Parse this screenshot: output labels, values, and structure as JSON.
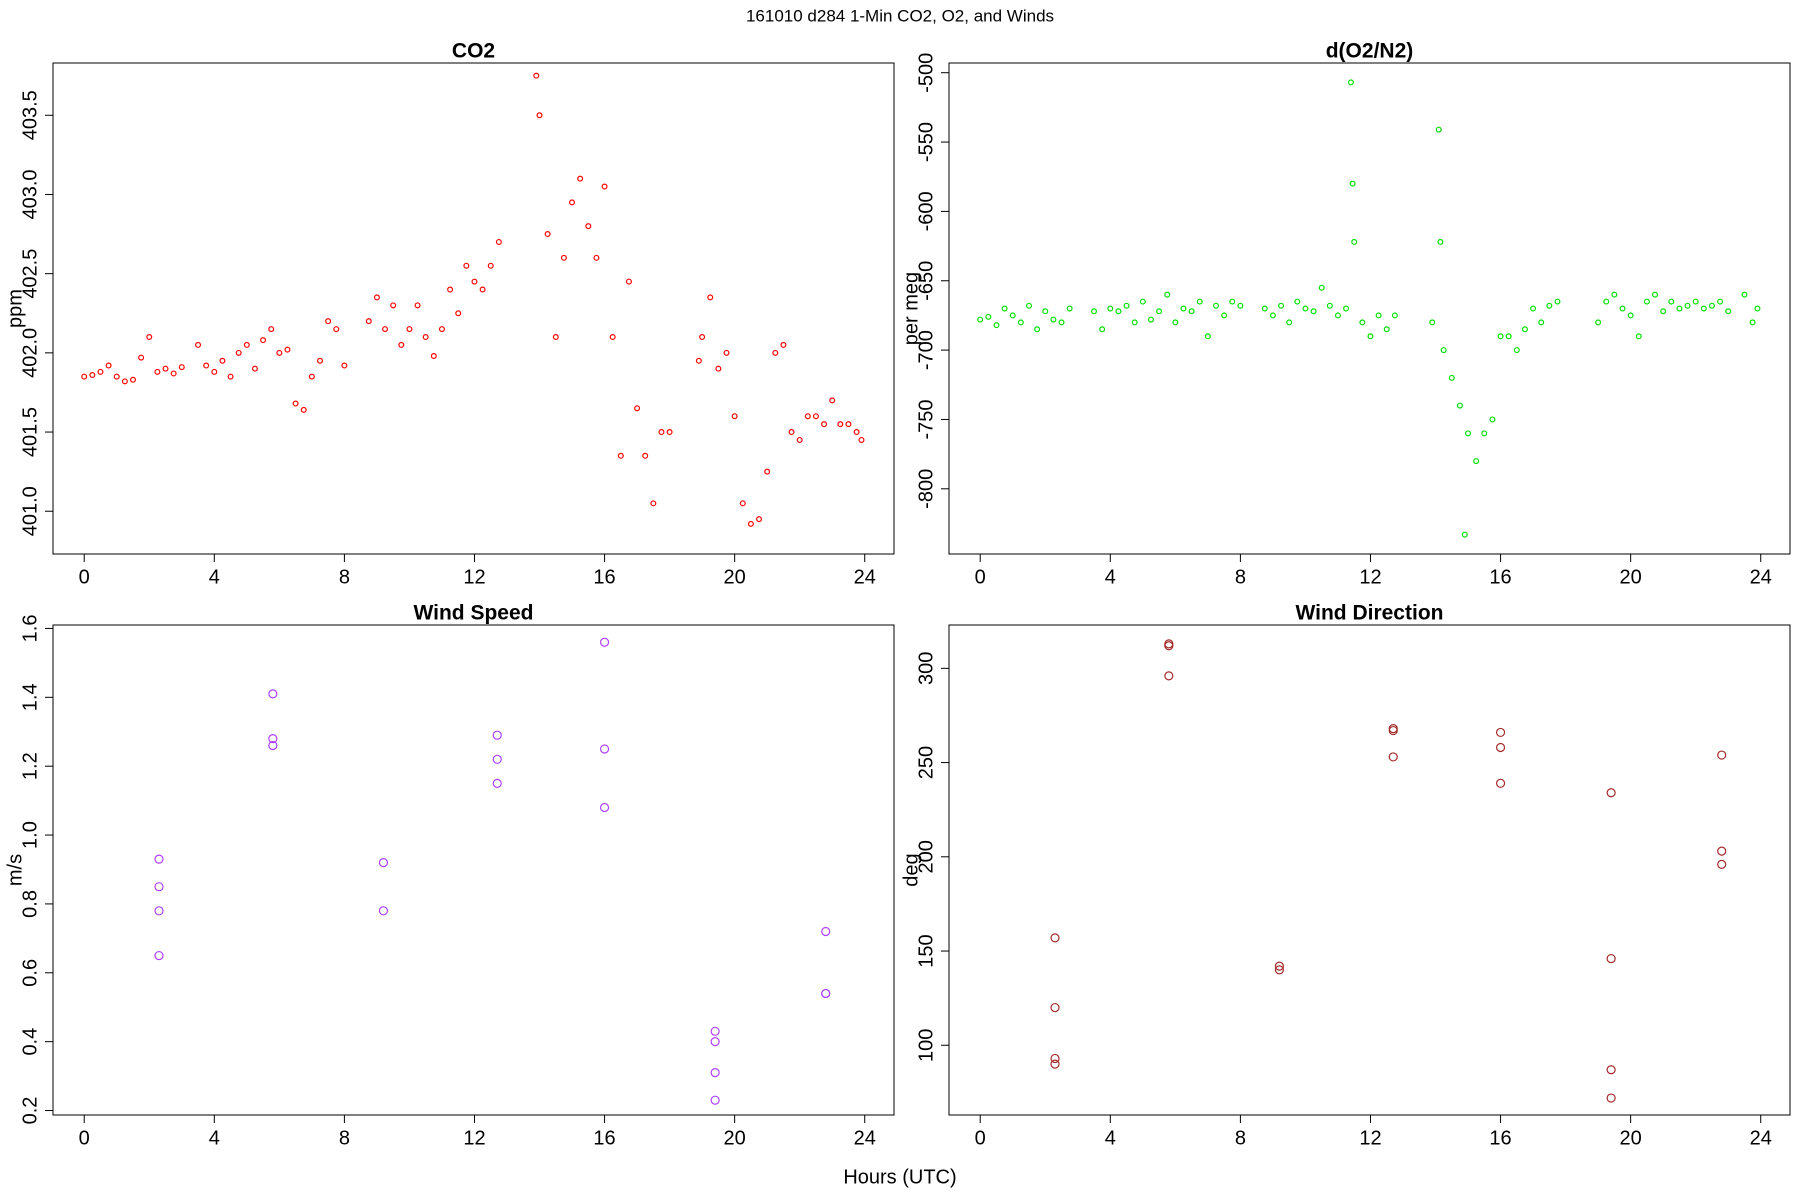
{
  "title": "161010   d284   1-Min CO2, O2, and Winds",
  "xlabel": "Hours (UTC)",
  "chart_data": [
    {
      "type": "scatter",
      "title": "CO2",
      "ylabel": "ppm",
      "color": "#ff0000",
      "xlim": [
        -0.96,
        24.9
      ],
      "ylim": [
        400.73,
        403.83
      ],
      "xticks": [
        0,
        4,
        8,
        12,
        16,
        20,
        24
      ],
      "yticks": [
        {
          "value": 401,
          "label": "401.0"
        },
        401.5,
        {
          "value": 402,
          "label": "402.0"
        },
        402.5,
        {
          "value": 403,
          "label": "403.0"
        },
        403.5
      ],
      "x": [
        0,
        0.25,
        0.5,
        0.75,
        1,
        1.25,
        1.5,
        1.75,
        2,
        2.25,
        2.5,
        2.75,
        3,
        3.5,
        3.75,
        4,
        4.25,
        4.5,
        4.75,
        5,
        5.25,
        5.5,
        5.75,
        6,
        6.25,
        6.5,
        6.75,
        7,
        7.25,
        7.5,
        7.75,
        8,
        8.75,
        9,
        9.25,
        9.5,
        9.75,
        10,
        10.25,
        10.5,
        10.75,
        11,
        11.25,
        11.5,
        11.75,
        12,
        12.25,
        12.5,
        12.75,
        13.9,
        14,
        14.25,
        14.5,
        14.75,
        15,
        15.25,
        15.5,
        15.75,
        16,
        16.25,
        16.5,
        16.75,
        17,
        17.25,
        17.5,
        17.75,
        18,
        18.9,
        19,
        19.25,
        19.5,
        19.75,
        20,
        20.25,
        20.5,
        20.75,
        21,
        21.25,
        21.5,
        21.75,
        22,
        22.25,
        22.5,
        22.75,
        23,
        23.25,
        23.5,
        23.75,
        23.9
      ],
      "values": [
        401.85,
        401.86,
        401.88,
        401.92,
        401.85,
        401.82,
        401.83,
        401.97,
        402.1,
        401.88,
        401.9,
        401.87,
        401.91,
        402.05,
        401.92,
        401.88,
        401.95,
        401.85,
        402.0,
        402.05,
        401.9,
        402.08,
        402.15,
        402.0,
        402.02,
        401.68,
        401.64,
        401.85,
        401.95,
        402.2,
        402.15,
        401.92,
        402.2,
        402.35,
        402.15,
        402.3,
        402.05,
        402.15,
        402.3,
        402.1,
        401.98,
        402.15,
        402.4,
        402.25,
        402.55,
        402.45,
        402.4,
        402.55,
        402.7,
        403.75,
        403.5,
        402.75,
        402.1,
        402.6,
        402.95,
        403.1,
        402.8,
        402.6,
        403.05,
        402.1,
        401.35,
        402.45,
        401.65,
        401.35,
        401.05,
        401.5,
        401.5,
        401.95,
        402.1,
        402.35,
        401.9,
        402.0,
        401.6,
        401.05,
        400.92,
        400.95,
        401.25,
        402.0,
        402.05,
        401.5,
        401.45,
        401.6,
        401.6,
        401.55,
        401.7,
        401.55,
        401.55,
        401.5,
        401.45
      ]
    },
    {
      "type": "scatter",
      "title": "d(O2/N2)",
      "ylabel": "per meg",
      "color": "#00e000",
      "xlim": [
        -0.96,
        24.9
      ],
      "ylim": [
        -847,
        -493
      ],
      "xticks": [
        0,
        4,
        8,
        12,
        16,
        20,
        24
      ],
      "yticks": [
        -500,
        -550,
        -600,
        -650,
        -700,
        -750,
        -800
      ],
      "x": [
        0,
        0.25,
        0.5,
        0.75,
        1,
        1.25,
        1.5,
        1.75,
        2,
        2.25,
        2.5,
        2.75,
        3.5,
        3.75,
        4,
        4.25,
        4.5,
        4.75,
        5,
        5.25,
        5.5,
        5.75,
        6,
        6.25,
        6.5,
        6.75,
        7,
        7.25,
        7.5,
        7.75,
        8,
        8.75,
        9,
        9.25,
        9.5,
        9.75,
        10,
        10.25,
        10.5,
        10.75,
        11,
        11.25,
        11.4,
        11.45,
        11.5,
        11.75,
        12,
        12.25,
        12.5,
        12.75,
        13.9,
        14.1,
        14.15,
        14.25,
        14.5,
        14.75,
        14.9,
        15,
        15.25,
        15.5,
        15.75,
        16,
        16.25,
        16.5,
        16.75,
        17,
        17.25,
        17.5,
        17.75,
        19,
        19.25,
        19.5,
        19.75,
        20,
        20.25,
        20.5,
        20.75,
        21,
        21.25,
        21.5,
        21.75,
        22,
        22.25,
        22.5,
        22.75,
        23,
        23.5,
        23.75,
        23.9
      ],
      "values": [
        -678,
        -676,
        -682,
        -670,
        -675,
        -680,
        -668,
        -685,
        -672,
        -678,
        -680,
        -670,
        -672,
        -685,
        -670,
        -672,
        -668,
        -680,
        -665,
        -678,
        -672,
        -660,
        -680,
        -670,
        -672,
        -665,
        -690,
        -668,
        -675,
        -665,
        -668,
        -670,
        -675,
        -668,
        -680,
        -665,
        -670,
        -672,
        -655,
        -668,
        -675,
        -670,
        -507,
        -580,
        -622,
        -680,
        -690,
        -675,
        -685,
        -675,
        -680,
        -541,
        -622,
        -700,
        -720,
        -740,
        -833,
        -760,
        -780,
        -760,
        -750,
        -690,
        -690,
        -700,
        -685,
        -670,
        -680,
        -668,
        -665,
        -680,
        -665,
        -660,
        -670,
        -675,
        -690,
        -665,
        -660,
        -672,
        -665,
        -670,
        -668,
        -665,
        -670,
        -668,
        -665,
        -672,
        -660,
        -680,
        -670
      ]
    },
    {
      "type": "scatter",
      "title": "Wind Speed",
      "ylabel": "m/s",
      "color": "#b040ff",
      "xlim": [
        -0.96,
        24.9
      ],
      "ylim": [
        0.187,
        1.61
      ],
      "xticks": [
        0,
        4,
        8,
        12,
        16,
        20,
        24
      ],
      "yticks": [
        0.2,
        0.4,
        0.6,
        0.8,
        {
          "value": 1,
          "label": "1.0"
        },
        1.2,
        1.4,
        1.6
      ],
      "x": [
        2.3,
        2.3,
        2.3,
        2.3,
        5.8,
        5.8,
        5.8,
        9.2,
        9.2,
        12.7,
        12.7,
        12.7,
        16,
        16,
        16,
        19.4,
        19.4,
        19.4,
        19.4,
        22.8,
        22.8,
        22.8
      ],
      "values": [
        0.93,
        0.85,
        0.78,
        0.65,
        1.41,
        1.28,
        1.26,
        0.92,
        0.78,
        1.29,
        1.22,
        1.15,
        1.56,
        1.25,
        1.08,
        0.43,
        0.4,
        0.31,
        0.23,
        0.72,
        0.54,
        0.54
      ]
    },
    {
      "type": "scatter",
      "title": "Wind Direction",
      "ylabel": "deg",
      "color": "#a52a2a",
      "xlim": [
        -0.96,
        24.9
      ],
      "ylim": [
        63,
        323
      ],
      "xticks": [
        0,
        4,
        8,
        12,
        16,
        20,
        24
      ],
      "yticks": [
        100,
        150,
        200,
        250,
        300
      ],
      "x": [
        2.3,
        2.3,
        2.3,
        2.3,
        5.8,
        5.8,
        5.8,
        9.2,
        9.2,
        12.7,
        12.7,
        12.7,
        16,
        16,
        16,
        19.4,
        19.4,
        19.4,
        19.4,
        22.8,
        22.8,
        22.8
      ],
      "values": [
        157,
        120,
        93,
        90,
        313,
        312,
        296,
        142,
        140,
        268,
        267,
        253,
        266,
        258,
        239,
        234,
        146,
        87,
        72,
        254,
        203,
        196
      ]
    }
  ]
}
